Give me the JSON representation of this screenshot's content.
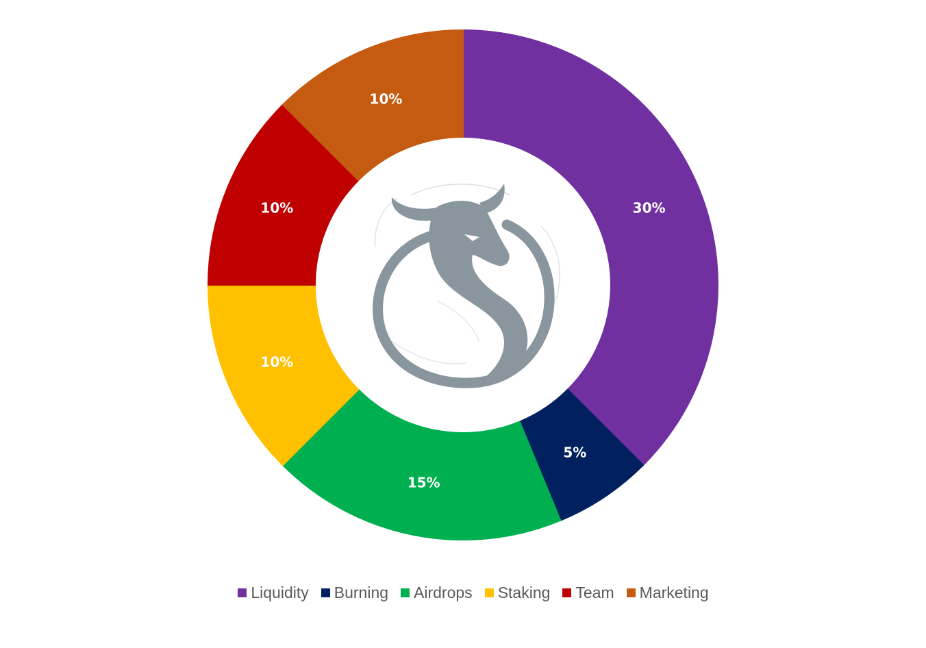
{
  "chart_data": {
    "type": "pie",
    "donut": true,
    "title": "",
    "legend_position": "bottom",
    "slices": [
      {
        "name": "Liquidity",
        "value": 30,
        "label": "30%",
        "color": "#7030A0"
      },
      {
        "name": "Burning",
        "value": 5,
        "label": "5%",
        "color": "#002060"
      },
      {
        "name": "Airdrops",
        "value": 15,
        "label": "15%",
        "color": "#00B050"
      },
      {
        "name": "Staking",
        "value": 10,
        "label": "10%",
        "color": "#FFC000"
      },
      {
        "name": "Team",
        "value": 10,
        "label": "10%",
        "color": "#C00000"
      },
      {
        "name": "Marketing",
        "value": 10,
        "label": "10%",
        "color": "#C55A11"
      }
    ],
    "center_logo": "bull-dragon-logo"
  }
}
